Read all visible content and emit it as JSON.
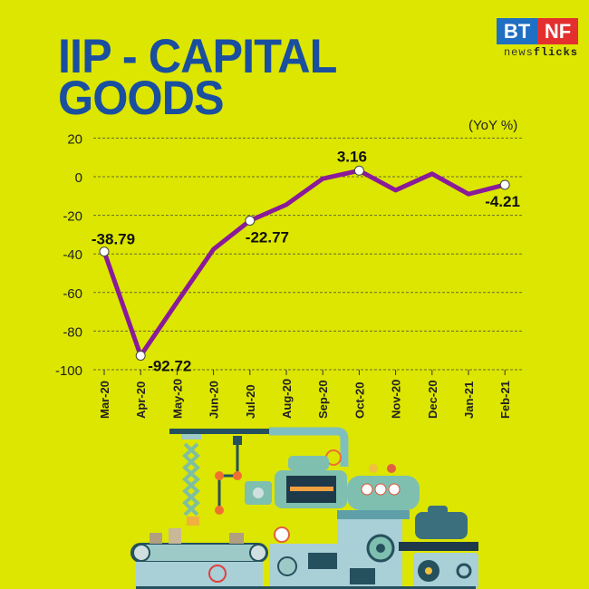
{
  "title_line1": "IIP - CAPITAL",
  "title_line2": "GOODS",
  "logo": {
    "left": "BT",
    "right": "NF",
    "sub_light": "news",
    "sub_bold": "flicks"
  },
  "unit_label": "(YoY %)",
  "colors": {
    "background": "#dce600",
    "title": "#1a4f9f",
    "line": "#8a1a9a",
    "grid": "#6b6b30"
  },
  "chart_data": {
    "type": "line",
    "title": "IIP - CAPITAL GOODS",
    "ylabel": "YoY %",
    "xlabel": "",
    "ylim": [
      -100,
      20
    ],
    "yticks": [
      20,
      0,
      -20,
      -40,
      -60,
      -80,
      -100
    ],
    "grid": true,
    "categories": [
      "Mar-20",
      "Apr-20",
      "May-20",
      "Jun-20",
      "Jul-20",
      "Aug-20",
      "Sep-20",
      "Oct-20",
      "Nov-20",
      "Dec-20",
      "Jan-21",
      "Feb-21"
    ],
    "series": [
      {
        "name": "IIP Capital Goods YoY %",
        "values": [
          -38.79,
          -92.72,
          -65,
          -37.6,
          -22.77,
          -14.5,
          -1,
          3.16,
          -7,
          1.5,
          -9,
          -4.21
        ]
      }
    ],
    "annotations": [
      {
        "index": 0,
        "label": "-38.79"
      },
      {
        "index": 1,
        "label": "-92.72"
      },
      {
        "index": 4,
        "label": "-22.77"
      },
      {
        "index": 7,
        "label": "3.16"
      },
      {
        "index": 11,
        "label": "-4.21"
      }
    ]
  }
}
